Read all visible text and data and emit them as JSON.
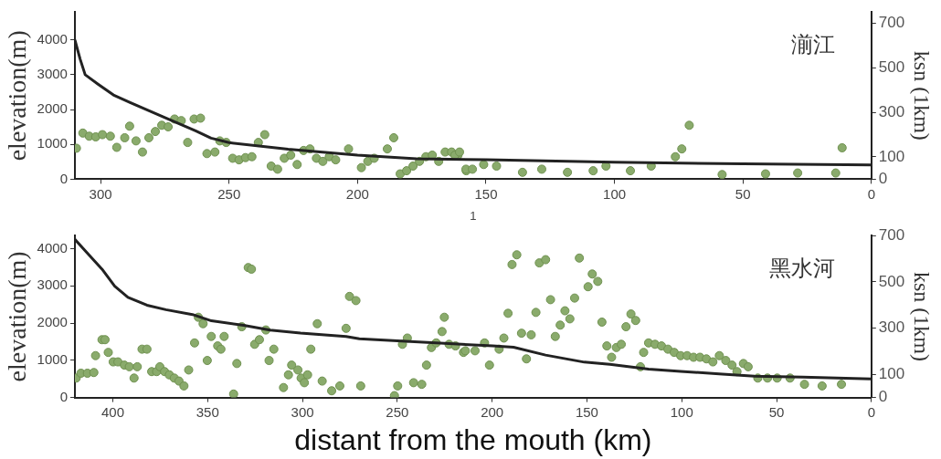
{
  "chart_data": [
    {
      "type": "line",
      "xlabel": "1",
      "ylabel": "elevation(m)",
      "y2label": "ksn (1km)",
      "annotations": [
        "湔江"
      ],
      "xlim": [
        310,
        0
      ],
      "xticks": [
        300,
        250,
        200,
        150,
        100,
        50,
        0
      ],
      "ylim": [
        0,
        4800
      ],
      "yticks": [
        0,
        1000,
        2000,
        3000,
        4000
      ],
      "y2lim": [
        0,
        750
      ],
      "y2ticks": [
        0,
        100,
        300,
        500,
        700
      ],
      "grid": false,
      "legend": false,
      "series": [
        {
          "type": "line",
          "color": "#222222",
          "marker": "none",
          "x": [
            310,
            308,
            306,
            301,
            295,
            288.5,
            276,
            263,
            257,
            250,
            227,
            200,
            177,
            150,
            100,
            50,
            0
          ],
          "values": [
            4000,
            3460,
            3000,
            2730,
            2420,
            2200,
            1800,
            1390,
            1180,
            1050,
            860,
            690,
            590,
            560,
            490,
            440,
            410
          ]
        },
        {
          "type": "scatter",
          "axis": "y2",
          "color": "#8aab6c",
          "marker": "circle",
          "x": [
            309.4,
            306.9,
            304.4,
            301.9,
            299.3,
            296.2,
            293.7,
            290.6,
            288.7,
            286.2,
            283.7,
            281.2,
            278.7,
            276.2,
            273.7,
            271.2,
            268.6,
            266.1,
            263.6,
            261.1,
            258.6,
            255.5,
            253.6,
            251.1,
            248.6,
            246.1,
            243.6,
            241.1,
            238.6,
            236.1,
            233.6,
            231.1,
            228.5,
            226.0,
            223.5,
            221.0,
            218.5,
            216.0,
            213.5,
            211.0,
            208.5,
            203.5,
            198.5,
            196.0,
            193.5,
            188.4,
            185.9,
            183.4,
            180.9,
            178.4,
            175.9,
            173.4,
            170.9,
            168.4,
            165.9,
            163.4,
            160.9,
            157.7,
            162.1,
            160.3,
            157.8,
            155.3,
            150.9,
            145.9,
            135.8,
            128.3,
            118.3,
            108.3,
            103.3,
            93.8,
            85.7,
            76.3,
            73.8,
            70.9,
            58.1,
            41.2,
            28.7,
            13.9,
            11.4
          ],
          "values": [
            139,
            207,
            193,
            190,
            200,
            193,
            143,
            186,
            238,
            172,
            122,
            186,
            214,
            242,
            235,
            270,
            263,
            165,
            270,
            274,
            115,
            122,
            172,
            165,
            94,
            87,
            97,
            101,
            165,
            200,
            59,
            45,
            94,
            108,
            66,
            129,
            136,
            94,
            80,
            101,
            87,
            136,
            52,
            80,
            94,
            136,
            186,
            24,
            38,
            59,
            80,
            101,
            108,
            80,
            122,
            122,
            108,
            38,
            108,
            122,
            45,
            45,
            66,
            59,
            31,
            45,
            31,
            38,
            59,
            38,
            59,
            101,
            136,
            242,
            21,
            24,
            28,
            28,
            141
          ]
        }
      ]
    },
    {
      "type": "line",
      "xlabel": "distant from the mouth (km)",
      "ylabel": "elevation(m)",
      "y2label": "ksn (1km)",
      "annotations": [
        "黑水河"
      ],
      "xlim": [
        420,
        0
      ],
      "xticks": [
        400,
        350,
        300,
        250,
        200,
        150,
        100,
        50,
        0
      ],
      "ylim": [
        0,
        4350
      ],
      "yticks": [
        0,
        1000,
        2000,
        3000,
        4000
      ],
      "y2lim": [
        0,
        700
      ],
      "y2ticks": [
        0,
        100,
        300,
        500,
        700
      ],
      "grid": false,
      "legend": false,
      "series": [
        {
          "type": "line",
          "color": "#222222",
          "marker": "none",
          "x": [
            420,
            412.5,
            405.7,
            399,
            392,
            382,
            372,
            358,
            348,
            331,
            317,
            301,
            277,
            270,
            250,
            216,
            199.7,
            188.7,
            171.8,
            151.4,
            137.9,
            117.5,
            100.6,
            78.5,
            61.6,
            36.2,
            0
          ],
          "values": [
            4250,
            3830,
            3450,
            2990,
            2690,
            2480,
            2360,
            2230,
            2060,
            1940,
            1810,
            1730,
            1640,
            1580,
            1520,
            1430,
            1390,
            1350,
            1140,
            950,
            890,
            760,
            700,
            630,
            570,
            550,
            500
          ]
        },
        {
          "type": "scatter",
          "axis": "y2",
          "color": "#8aab6c",
          "marker": "circle",
          "x": [
            419.3,
            416.8,
            413.4,
            410.0,
            409.1,
            405.7,
            404.1,
            402.4,
            399.8,
            397.3,
            393.9,
            391.3,
            388.8,
            387.1,
            384.6,
            382.0,
            379.5,
            376.9,
            375.2,
            372.7,
            370.2,
            367.6,
            365.1,
            362.5,
            360.0,
            356.9,
            354.9,
            352.4,
            350.2,
            348.1,
            344.7,
            343.0,
            341.3,
            336.3,
            334.6,
            332.0,
            328.6,
            326.9,
            325.2,
            322.7,
            319.3,
            317.6,
            315.1,
            310.0,
            307.4,
            305.7,
            302.4,
            300.7,
            299.0,
            297.3,
            295.6,
            292.2,
            289.6,
            284.6,
            280.3,
            277.0,
            275.2,
            271.8,
            269.3,
            251.5,
            249.8,
            247.3,
            244.7,
            241.4,
            237.1,
            234.6,
            232.0,
            229.5,
            226.4,
            225.2,
            222.7,
            219.3,
            215.1,
            214.1,
            209.0,
            204.0,
            201.4,
            196.3,
            193.8,
            191.6,
            189.5,
            187.0,
            184.5,
            181.9,
            179.4,
            176.9,
            175.1,
            171.8,
            169.2,
            166.7,
            164.1,
            161.6,
            159.0,
            156.5,
            154.0,
            149.4,
            147.2,
            144.3,
            142.1,
            139.5,
            137.0,
            134.5,
            131.9,
            129.4,
            126.8,
            124.3,
            121.8,
            120.1,
            117.5,
            114.1,
            110.7,
            107.3,
            104.0,
            100.6,
            97.2,
            93.8,
            90.4,
            87.0,
            83.6,
            80.2,
            76.8,
            73.5,
            70.9,
            67.5,
            65.0,
            59.9,
            54.8,
            49.7,
            42.9,
            35.3,
            26.0,
            15.8
          ],
          "values": [
            84,
            105,
            105,
            108,
            181,
            250,
            250,
            195,
            154,
            154,
            140,
            133,
            84,
            133,
            209,
            209,
            112,
            112,
            133,
            112,
            98,
            84,
            71,
            50,
            119,
            236,
            347,
            319,
            160,
            264,
            223,
            209,
            264,
            15,
            147,
            306,
            562,
            555,
            230,
            250,
            292,
            160,
            209,
            43,
            98,
            140,
            119,
            84,
            64,
            98,
            209,
            319,
            71,
            29,
            50,
            299,
            437,
            419,
            50,
            8,
            50,
            230,
            257,
            64,
            57,
            140,
            216,
            236,
            285,
            347,
            230,
            223,
            195,
            202,
            202,
            236,
            140,
            209,
            257,
            364,
            575,
            617,
            278,
            167,
            271,
            368,
            582,
            596,
            423,
            264,
            313,
            375,
            340,
            430,
            603,
            479,
            534,
            502,
            326,
            223,
            174,
            216,
            230,
            306,
            361,
            333,
            133,
            195,
            236,
            230,
            223,
            209,
            195,
            181,
            181,
            174,
            174,
            167,
            154,
            181,
            160,
            140,
            112,
            147,
            133,
            84,
            84,
            84,
            84,
            57,
            50,
            57
          ]
        }
      ]
    }
  ]
}
